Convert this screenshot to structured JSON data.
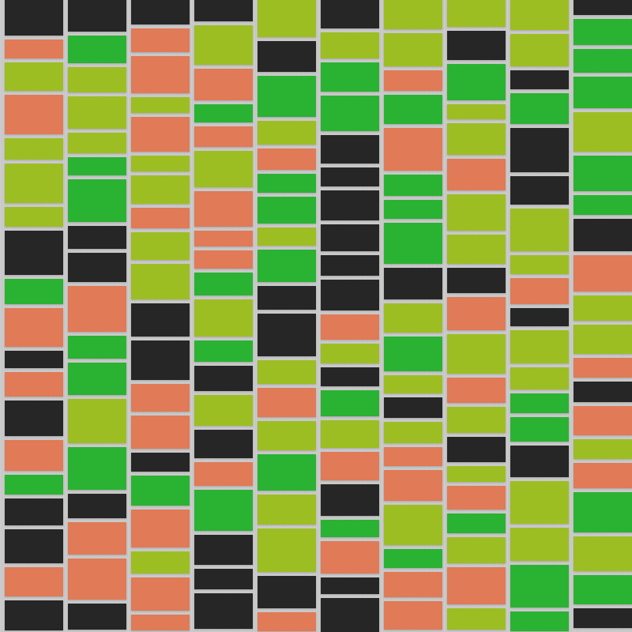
{
  "palette": {
    "dark": "#262626",
    "lime": "#9dbe22",
    "green": "#2ab232",
    "salmon": "#e07a57",
    "grout": "#c9c9c9"
  },
  "columns": [
    [
      "dark",
      "salmon",
      "lime",
      "salmon",
      "lime",
      "lime",
      "lime",
      "dark",
      "green",
      "salmon",
      "dark",
      "salmon",
      "dark",
      "salmon",
      "green",
      "dark",
      "dark",
      "salmon",
      "dark"
    ],
    [
      "dark",
      "green",
      "lime",
      "lime",
      "lime",
      "green",
      "green",
      "dark",
      "dark",
      "salmon",
      "green",
      "green",
      "lime",
      "green",
      "dark",
      "salmon",
      "salmon",
      "dark"
    ],
    [
      "dark",
      "salmon",
      "salmon",
      "lime",
      "salmon",
      "lime",
      "lime",
      "salmon",
      "lime",
      "lime",
      "dark",
      "dark",
      "salmon",
      "salmon",
      "dark",
      "green",
      "salmon",
      "lime",
      "salmon",
      "salmon"
    ],
    [
      "dark",
      "lime",
      "salmon",
      "green",
      "salmon",
      "lime",
      "salmon",
      "salmon",
      "salmon",
      "green",
      "lime",
      "green",
      "dark",
      "lime",
      "dark",
      "salmon",
      "green",
      "dark",
      "dark",
      "dark"
    ],
    [
      "lime",
      "dark",
      "green",
      "lime",
      "salmon",
      "green",
      "green",
      "lime",
      "green",
      "dark",
      "dark",
      "lime",
      "salmon",
      "lime",
      "green",
      "lime",
      "lime",
      "dark",
      "salmon"
    ],
    [
      "dark",
      "lime",
      "green",
      "green",
      "dark",
      "dark",
      "dark",
      "dark",
      "dark",
      "dark",
      "salmon",
      "lime",
      "dark",
      "green",
      "lime",
      "salmon",
      "dark",
      "green",
      "salmon",
      "dark",
      "dark"
    ],
    [
      "lime",
      "lime",
      "salmon",
      "green",
      "salmon",
      "green",
      "green",
      "green",
      "dark",
      "lime",
      "green",
      "lime",
      "dark",
      "lime",
      "salmon",
      "salmon",
      "lime",
      "green",
      "salmon",
      "salmon"
    ],
    [
      "lime",
      "dark",
      "green",
      "lime",
      "lime",
      "salmon",
      "lime",
      "lime",
      "dark",
      "salmon",
      "lime",
      "salmon",
      "lime",
      "dark",
      "lime",
      "salmon",
      "green",
      "lime",
      "salmon",
      "lime"
    ],
    [
      "lime",
      "lime",
      "dark",
      "green",
      "dark",
      "dark",
      "lime",
      "lime",
      "salmon",
      "dark",
      "lime",
      "lime",
      "green",
      "green",
      "dark",
      "lime",
      "lime",
      "green",
      "green"
    ],
    [
      "dark",
      "green",
      "green",
      "green",
      "lime",
      "green",
      "green",
      "dark",
      "salmon",
      "lime",
      "lime",
      "salmon",
      "dark",
      "salmon",
      "lime",
      "salmon",
      "green",
      "lime",
      "green",
      "dark"
    ]
  ]
}
